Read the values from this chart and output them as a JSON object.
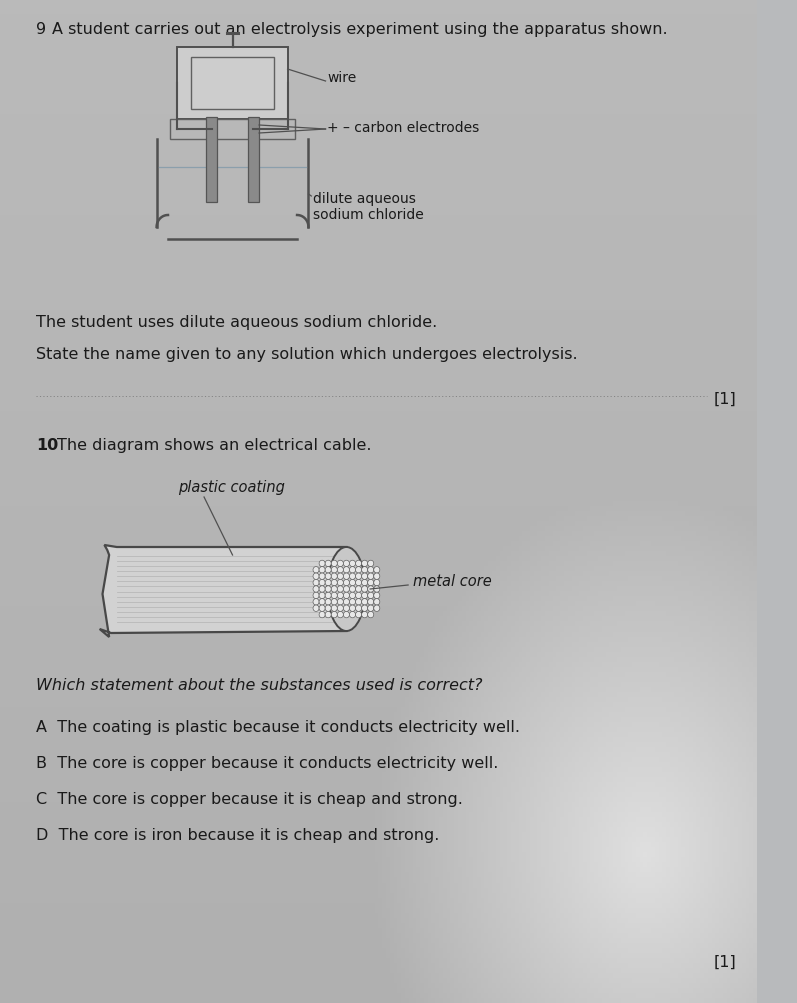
{
  "bg_color": "#b8babc",
  "text_color": "#1a1a1a",
  "q9_number": "9",
  "q9_intro": "A student carries out an electrolysis experiment using the apparatus shown.",
  "q9_text1": "The student uses dilute aqueous sodium chloride.",
  "q9_text2": "State the name given to any solution which undergoes electrolysis.",
  "q9_mark": "[1]",
  "q10_number": "10",
  "q10_intro": "The diagram shows an electrical cable.",
  "q10_question": "Which statement about the substances used is correct?",
  "q10_mark": "[1]",
  "q10_options": [
    "A  The coating is plastic because it conducts electricity well.",
    "B  The core is copper because it conducts electricity well.",
    "C  The core is copper because it is cheap and strong.",
    "D  The core is iron because it is cheap and strong."
  ],
  "label_wire": "wire",
  "label_carbon": "+ – carbon electrodes",
  "label_solution": "dilute aqueous\nsodium chloride",
  "label_plastic": "plastic coating",
  "label_metal": "metal core"
}
